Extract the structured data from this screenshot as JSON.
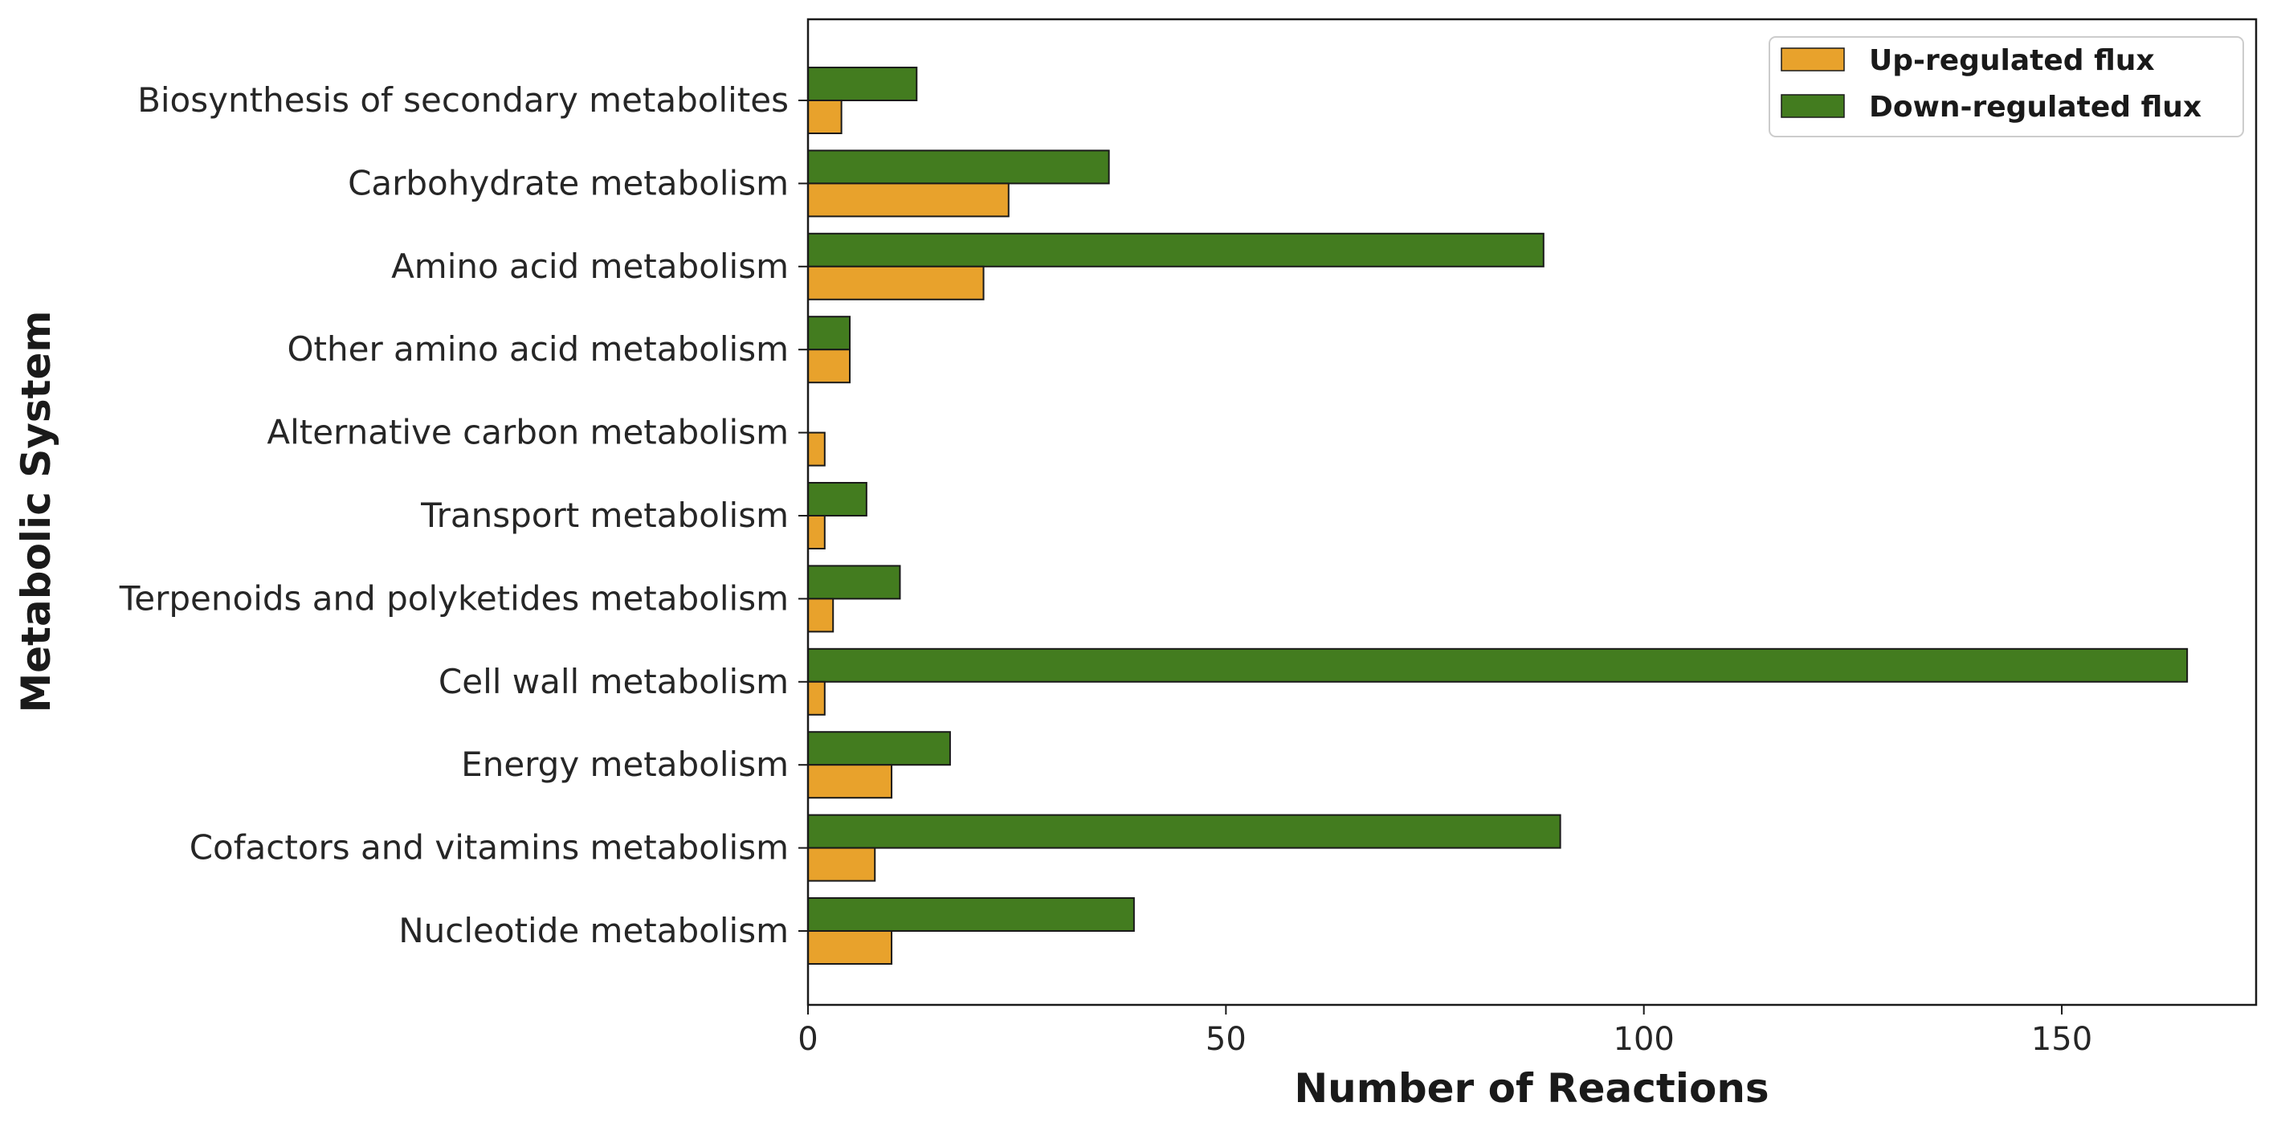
{
  "chart_data": {
    "type": "bar",
    "orientation": "horizontal",
    "categories": [
      "Biosynthesis of secondary metabolites",
      "Carbohydrate metabolism",
      "Amino acid metabolism",
      "Other amino acid metabolism",
      "Alternative carbon metabolism",
      "Transport metabolism",
      "Terpenoids and polyketides metabolism",
      "Cell wall metabolism",
      "Energy metabolism",
      "Cofactors and vitamins metabolism",
      "Nucleotide metabolism"
    ],
    "series": [
      {
        "name": "Up-regulated flux",
        "color": "#E8A22C",
        "values": [
          4,
          24,
          21,
          5,
          2,
          2,
          3,
          2,
          10,
          8,
          10
        ]
      },
      {
        "name": "Down-regulated flux",
        "color": "#437C1F",
        "values": [
          13,
          36,
          88,
          5,
          0,
          7,
          11,
          165,
          17,
          90,
          39
        ]
      }
    ],
    "title": "",
    "xlabel": "Number of Reactions",
    "ylabel": "Metabolic System",
    "xlim": [
      0,
      173.25
    ],
    "xticks": [
      0,
      50,
      100,
      150
    ],
    "xtick_labels": [
      "0",
      "50",
      "100",
      "150"
    ],
    "grid": false,
    "legend_position": "top-right"
  }
}
